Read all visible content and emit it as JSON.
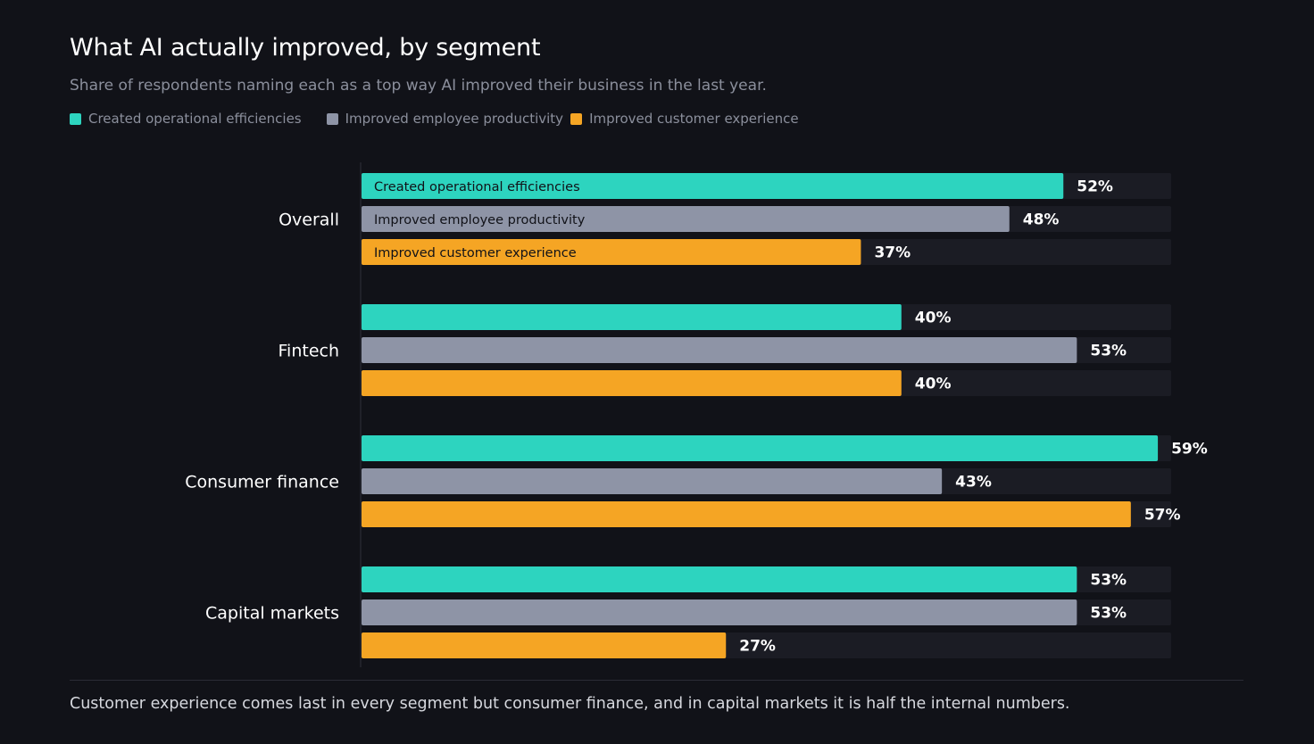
{
  "header": {
    "title": "What AI actually improved, by segment",
    "subtitle": "Share of respondents naming each as a top way AI improved their business in the last year."
  },
  "footer": {
    "note": "Customer experience comes last in every segment but consumer finance, and in capital markets it is half the internal numbers."
  },
  "colors": {
    "background": "#111218",
    "track": "#1b1c24",
    "axis": "#2e303a",
    "segment_label": "#ffffff",
    "value_label": "#ffffff",
    "in_bar_label": "#111218"
  },
  "chart_data": {
    "type": "bar",
    "orientation": "horizontal",
    "title": "What AI actually improved, by segment",
    "subtitle": "Share of respondents naming each as a top way AI improved their business in the last year.",
    "unit": "%",
    "xlim": [
      0,
      60
    ],
    "grid": false,
    "legend_position": "top-left",
    "categories": [
      "Overall",
      "Fintech",
      "Consumer finance",
      "Capital markets"
    ],
    "series": [
      {
        "name": "Created operational efficiencies",
        "color": "#2dd4bf",
        "values": [
          52,
          40,
          59,
          53
        ]
      },
      {
        "name": "Improved employee productivity",
        "color": "#8e94a6",
        "values": [
          48,
          53,
          43,
          53
        ]
      },
      {
        "name": "Improved customer experience",
        "color": "#f5a524",
        "values": [
          37,
          40,
          57,
          27
        ]
      }
    ],
    "in_bar_labels_category": "Overall"
  }
}
